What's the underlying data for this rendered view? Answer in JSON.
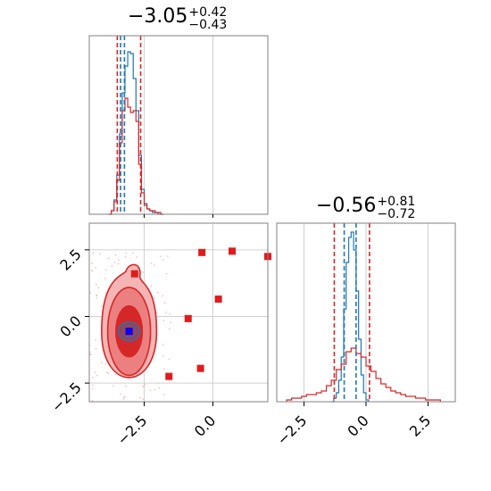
{
  "chart_data": [
    {
      "type": "histogram",
      "panel": "param1-marginal",
      "title": {
        "value": "−3.05",
        "plus": "+0.42",
        "minus": "−0.43"
      },
      "x_range": [
        -4.5,
        2.0
      ],
      "grid": true,
      "series": [
        {
          "color": "#1f77b4",
          "bin_edges": [
            -3.8,
            -3.7,
            -3.6,
            -3.5,
            -3.4,
            -3.3,
            -3.2,
            -3.1,
            -3.0,
            -2.9,
            -2.8,
            -2.7,
            -2.6,
            -2.5,
            -2.4,
            -2.3,
            -2.2,
            -2.1,
            -2.0,
            -1.9,
            -1.8
          ],
          "heights": [
            0,
            0.02,
            0.08,
            0.22,
            0.45,
            0.68,
            0.83,
            0.91,
            0.9,
            0.76,
            0.58,
            0.33,
            0.14,
            0.06,
            0.03,
            0.02,
            0.01,
            0.01,
            0,
            0
          ]
        },
        {
          "color": "#d62728",
          "bin_edges": [
            -3.8,
            -3.7,
            -3.6,
            -3.5,
            -3.4,
            -3.3,
            -3.2,
            -3.1,
            -3.0,
            -2.9,
            -2.8,
            -2.7,
            -2.6,
            -2.5,
            -2.4,
            -2.3,
            -2.2,
            -2.1,
            -2.0,
            -1.9,
            -1.8
          ],
          "heights": [
            0,
            0.02,
            0.07,
            0.19,
            0.4,
            0.58,
            0.65,
            0.6,
            0.57,
            0.58,
            0.52,
            0.28,
            0.12,
            0.05,
            0.03,
            0.02,
            0.02,
            0.01,
            0.01,
            0
          ]
        }
      ],
      "quantile_lines": [
        {
          "color": "#d62728",
          "x": [
            -3.48,
            -2.63
          ]
        },
        {
          "color": "#1f77b4",
          "x": [
            -3.36,
            -3.22
          ]
        }
      ]
    },
    {
      "type": "contour",
      "panel": "joint",
      "x_range": [
        -4.5,
        2.0
      ],
      "y_range": [
        -3.2,
        3.5
      ],
      "grid": true,
      "red_contours": {
        "center": [
          -3.05,
          -0.56
        ],
        "half_widths_x": [
          1.0,
          0.78,
          0.48
        ],
        "half_widths_y": [
          2.2,
          1.65,
          0.95
        ],
        "fill_colors": [
          "#f5b5b5",
          "#ec8080",
          "#d62728"
        ],
        "lobe_top": [
          -2.85,
          1.95
        ]
      },
      "blue_contours": {
        "center": [
          -3.05,
          -0.56
        ],
        "half_widths_x": [
          0.38,
          0.25,
          0.12
        ],
        "half_widths_y": [
          0.35,
          0.22,
          0.1
        ],
        "color": "#1f77b4"
      },
      "red_points": [
        {
          "x": -2.85,
          "y": 1.6
        },
        {
          "x": -0.4,
          "y": 2.4
        },
        {
          "x": 0.7,
          "y": 2.45
        },
        {
          "x": 2.0,
          "y": 2.25
        },
        {
          "x": 0.2,
          "y": 0.65
        },
        {
          "x": -0.9,
          "y": -0.08
        },
        {
          "x": -0.45,
          "y": -1.95
        },
        {
          "x": -1.6,
          "y": -2.25
        }
      ],
      "blue_point": {
        "x": -3.05,
        "y": -0.56
      },
      "xticks": [
        "−2.5",
        "0.0"
      ],
      "xtick_values": [
        -2.5,
        0.0
      ],
      "yticks": [
        "2.5",
        "0.0",
        "−2.5"
      ],
      "ytick_values": [
        2.5,
        0.0,
        -2.5
      ]
    },
    {
      "type": "histogram",
      "panel": "param2-marginal",
      "title": {
        "value": "−0.56",
        "plus": "+0.81",
        "minus": "−0.72"
      },
      "x_range": [
        -3.6,
        3.6
      ],
      "grid": true,
      "xticks": [
        "−2.5",
        "0.0",
        "2.5"
      ],
      "xtick_values": [
        -2.5,
        0.0,
        2.5
      ],
      "series": [
        {
          "color": "#1f77b4",
          "bin_edges": [
            -1.4,
            -1.3,
            -1.2,
            -1.1,
            -1.0,
            -0.9,
            -0.8,
            -0.7,
            -0.6,
            -0.5,
            -0.4,
            -0.3,
            -0.2,
            -0.1,
            0.0,
            0.1
          ],
          "heights": [
            0,
            0.02,
            0.05,
            0.12,
            0.25,
            0.52,
            0.78,
            0.92,
            0.95,
            0.85,
            0.62,
            0.35,
            0.15,
            0.05,
            0.01
          ]
        },
        {
          "color": "#d62728",
          "bin_edges": [
            -3.2,
            -3.0,
            -2.8,
            -2.6,
            -2.4,
            -2.2,
            -2.0,
            -1.8,
            -1.6,
            -1.4,
            -1.2,
            -1.0,
            -0.8,
            -0.6,
            -0.4,
            -0.2,
            0.0,
            0.2,
            0.4,
            0.6,
            0.8,
            1.0,
            1.2,
            1.4,
            1.6,
            1.8,
            2.0,
            2.2,
            2.4,
            2.6,
            2.8,
            3.0
          ],
          "heights": [
            0.01,
            0.02,
            0.02,
            0.03,
            0.04,
            0.04,
            0.05,
            0.06,
            0.09,
            0.12,
            0.18,
            0.21,
            0.28,
            0.3,
            0.27,
            0.25,
            0.2,
            0.17,
            0.13,
            0.1,
            0.08,
            0.06,
            0.05,
            0.04,
            0.03,
            0.03,
            0.02,
            0.02,
            0.01,
            0.01,
            0.01
          ]
        }
      ],
      "quantile_lines": [
        {
          "color": "#d62728",
          "x": [
            -1.28,
            0.14
          ]
        },
        {
          "color": "#1f77b4",
          "x": [
            -0.88,
            -0.4
          ]
        }
      ]
    }
  ]
}
